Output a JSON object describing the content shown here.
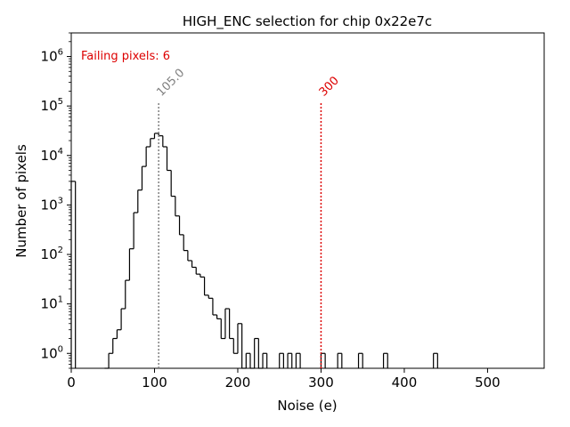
{
  "chart_data": {
    "type": "bar",
    "title": "HIGH_ENC selection for chip 0x22e7c",
    "xlabel": "Noise (e)",
    "ylabel": "Number of pixels",
    "xlim": [
      0,
      568
    ],
    "ylim": [
      0.5,
      3000000
    ],
    "yscale": "log",
    "xticks": [
      0,
      100,
      200,
      300,
      400,
      500
    ],
    "yticks": [
      {
        "value": 1,
        "exp": "0"
      },
      {
        "value": 10,
        "exp": "1"
      },
      {
        "value": 100,
        "exp": "2"
      },
      {
        "value": 1000,
        "exp": "3"
      },
      {
        "value": 10000,
        "exp": "4"
      },
      {
        "value": 100000,
        "exp": "5"
      },
      {
        "value": 1000000,
        "exp": "6"
      }
    ],
    "histogram": {
      "bin_width": 5,
      "color": "#000000",
      "bins": [
        [
          0,
          3000
        ],
        [
          40,
          0.5
        ],
        [
          45,
          1
        ],
        [
          50,
          2
        ],
        [
          55,
          3
        ],
        [
          60,
          8
        ],
        [
          65,
          30
        ],
        [
          70,
          130
        ],
        [
          75,
          700
        ],
        [
          80,
          2000
        ],
        [
          85,
          6000
        ],
        [
          90,
          15000
        ],
        [
          95,
          22000
        ],
        [
          100,
          28000
        ],
        [
          105,
          25000
        ],
        [
          110,
          15000
        ],
        [
          115,
          5000
        ],
        [
          120,
          1500
        ],
        [
          125,
          600
        ],
        [
          130,
          250
        ],
        [
          135,
          120
        ],
        [
          140,
          75
        ],
        [
          145,
          55
        ],
        [
          150,
          40
        ],
        [
          155,
          35
        ],
        [
          160,
          15
        ],
        [
          165,
          13
        ],
        [
          170,
          6
        ],
        [
          175,
          5
        ],
        [
          180,
          2
        ],
        [
          185,
          8
        ],
        [
          190,
          2
        ],
        [
          195,
          1
        ],
        [
          200,
          4
        ],
        [
          205,
          0.5
        ],
        [
          210,
          1
        ],
        [
          215,
          0.5
        ],
        [
          220,
          2
        ],
        [
          225,
          0.5
        ],
        [
          230,
          1
        ],
        [
          250,
          1
        ],
        [
          260,
          1
        ],
        [
          270,
          1
        ],
        [
          300,
          1
        ],
        [
          320,
          1
        ],
        [
          345,
          1
        ],
        [
          375,
          1
        ],
        [
          435,
          1
        ]
      ]
    },
    "reference_lines": [
      {
        "x": 105.0,
        "label": "105.0",
        "color": "#808080"
      },
      {
        "x": 300,
        "label": "300",
        "color": "#dd0000"
      }
    ],
    "annotations": [
      {
        "text": "Failing pixels: 6",
        "color": "#dd0000"
      }
    ]
  }
}
